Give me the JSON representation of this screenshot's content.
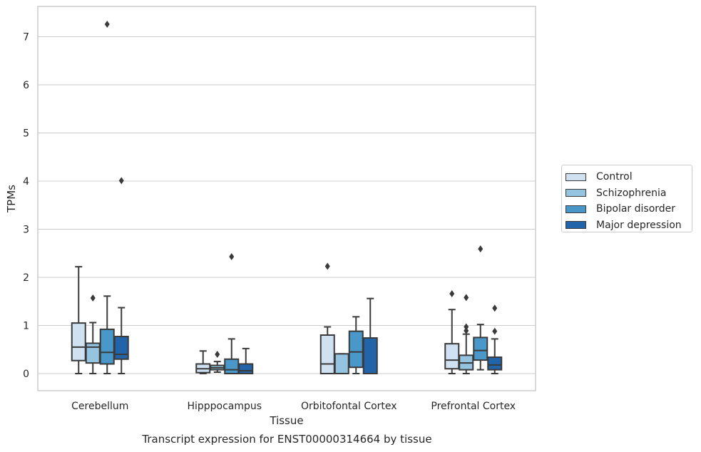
{
  "chart_data": {
    "type": "box",
    "xlabel": "Tissue",
    "ylabel": "TPMs",
    "caption": "Transcript expression for ENST00000314664 by tissue",
    "ylim": [
      -0.35,
      7.65
    ],
    "yticks": [
      0,
      1,
      2,
      3,
      4,
      5,
      6,
      7
    ],
    "categories": [
      "Cerebellum",
      "Hipppocampus",
      "Orbitofontal Cortex",
      "Prefrontal Cortex"
    ],
    "legend_position": "right",
    "series": [
      {
        "name": "Control",
        "color": "#d0e1f2",
        "boxes": [
          {
            "whislo": 0.0,
            "q1": 0.27,
            "med": 0.55,
            "q3": 1.05,
            "whishi": 2.22,
            "fliers": []
          },
          {
            "whislo": 0.0,
            "q1": 0.02,
            "med": 0.1,
            "q3": 0.2,
            "whislo2": null,
            "whishi": 0.47,
            "fliers": []
          },
          {
            "whislo": 0.0,
            "q1": 0.0,
            "med": 0.2,
            "q3": 0.8,
            "whishi": 0.97,
            "fliers": [
              2.23
            ]
          },
          {
            "whislo": 0.0,
            "q1": 0.1,
            "med": 0.28,
            "q3": 0.62,
            "whishi": 1.33,
            "fliers": [
              1.66
            ]
          }
        ]
      },
      {
        "name": "Schizophrenia",
        "color": "#94c4df",
        "boxes": [
          {
            "whislo": 0.0,
            "q1": 0.22,
            "med": 0.55,
            "q3": 0.63,
            "whishi": 1.06,
            "fliers": [
              1.57
            ]
          },
          {
            "whislo": 0.03,
            "q1": 0.08,
            "med": 0.12,
            "q3": 0.17,
            "whishi": 0.25,
            "fliers": [
              0.4
            ]
          },
          {
            "whislo": 0.0,
            "q1": 0.0,
            "med": 0.0,
            "q3": 0.41,
            "whishi": 0.41,
            "fliers": []
          },
          {
            "whislo": 0.0,
            "q1": 0.08,
            "med": 0.22,
            "q3": 0.38,
            "whishi": 0.82,
            "fliers": [
              0.89,
              0.97,
              1.58
            ]
          }
        ]
      },
      {
        "name": "Bipolar disorder",
        "color": "#4a98c9",
        "boxes": [
          {
            "whislo": 0.0,
            "q1": 0.2,
            "med": 0.44,
            "q3": 0.92,
            "whishi": 1.61,
            "fliers": [
              7.26
            ]
          },
          {
            "whislo": 0.0,
            "q1": 0.0,
            "med": 0.08,
            "q3": 0.3,
            "whishi": 0.72,
            "fliers": [
              2.43
            ]
          },
          {
            "whislo": 0.0,
            "q1": 0.13,
            "med": 0.45,
            "q3": 0.88,
            "whishi": 1.18,
            "fliers": []
          },
          {
            "whislo": 0.08,
            "q1": 0.28,
            "med": 0.48,
            "q3": 0.75,
            "whishi": 1.02,
            "fliers": [
              2.59
            ]
          }
        ]
      },
      {
        "name": "Major depression",
        "color": "#2264aa",
        "boxes": [
          {
            "whislo": 0.0,
            "q1": 0.3,
            "med": 0.4,
            "q3": 0.77,
            "whishi": 1.37,
            "fliers": [
              4.01
            ]
          },
          {
            "whislo": 0.0,
            "q1": 0.0,
            "med": 0.06,
            "q3": 0.2,
            "whishi": 0.52,
            "fliers": []
          },
          {
            "whislo": 0.0,
            "q1": 0.0,
            "med": 0.0,
            "q3": 0.74,
            "whishi": 1.56,
            "fliers": []
          },
          {
            "whislo": 0.0,
            "q1": 0.08,
            "med": 0.18,
            "q3": 0.34,
            "whishi": 0.72,
            "fliers": [
              0.88,
              1.36
            ]
          }
        ]
      }
    ]
  }
}
